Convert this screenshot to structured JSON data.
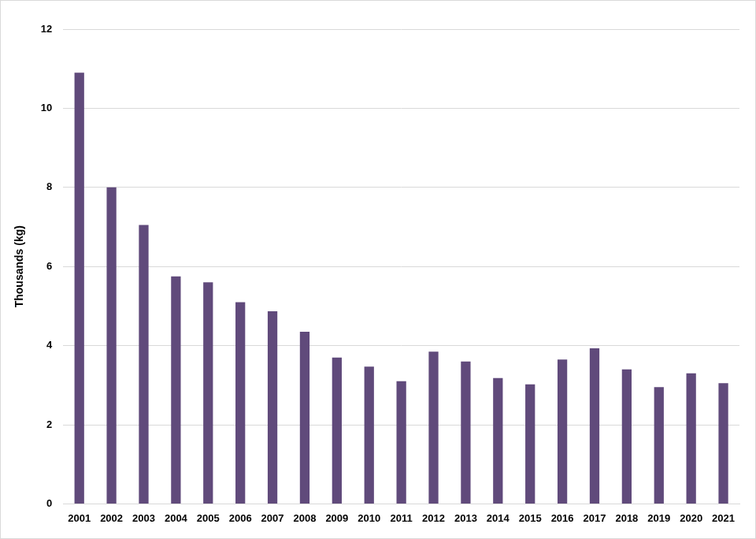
{
  "chart_data": {
    "type": "bar",
    "categories": [
      "2001",
      "2002",
      "2003",
      "2004",
      "2005",
      "2006",
      "2007",
      "2008",
      "2009",
      "2010",
      "2011",
      "2012",
      "2013",
      "2014",
      "2015",
      "2016",
      "2017",
      "2018",
      "2019",
      "2020",
      "2021"
    ],
    "values": [
      10.9,
      8.0,
      7.05,
      5.75,
      5.6,
      5.1,
      4.87,
      4.35,
      3.7,
      3.47,
      3.1,
      3.85,
      3.6,
      3.18,
      3.02,
      3.65,
      3.93,
      3.4,
      2.95,
      3.3,
      3.05
    ],
    "color": "#604a7b",
    "y_label": "Thousands (kg)",
    "ylim": [
      0,
      12
    ],
    "yticks": [
      0,
      2,
      4,
      6,
      8,
      10,
      12
    ],
    "grid": true
  }
}
